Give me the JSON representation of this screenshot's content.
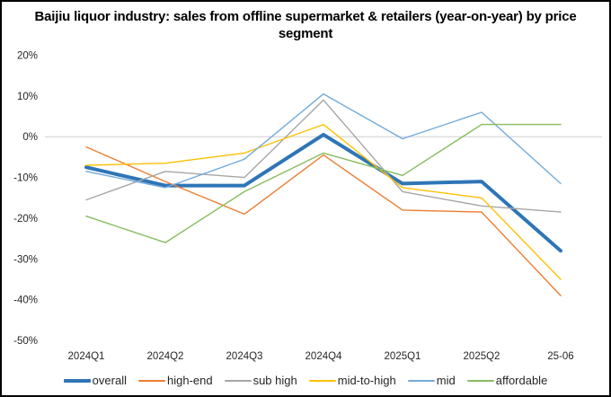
{
  "title": "Baijiu liquor industry: sales from offline supermarket & retailers (year-on-year) by price segment",
  "chart_data": {
    "type": "line",
    "categories": [
      "2024Q1",
      "2024Q2",
      "2024Q3",
      "2024Q4",
      "2025Q1",
      "2025Q2",
      "25-06"
    ],
    "series": [
      {
        "name": "overall",
        "color": "#2E75B6",
        "thick": true,
        "values": [
          -7.5,
          -12,
          -12,
          0.5,
          -11.5,
          -11,
          -28
        ]
      },
      {
        "name": "high-end",
        "color": "#ED7D31",
        "thick": false,
        "values": [
          -2.5,
          -11,
          -19,
          -4.5,
          -18,
          -18.5,
          -39
        ]
      },
      {
        "name": "sub high",
        "color": "#A6A6A6",
        "thick": false,
        "values": [
          -15.5,
          -8.5,
          -10,
          9,
          -13.5,
          -17,
          -18.5
        ]
      },
      {
        "name": "mid-to-high",
        "color": "#FFC000",
        "thick": false,
        "values": [
          -7,
          -6.5,
          -4,
          3,
          -12.5,
          -15,
          -35
        ]
      },
      {
        "name": "mid",
        "color": "#74AADB",
        "thick": false,
        "values": [
          -8.5,
          -12.5,
          -5.5,
          10.5,
          -0.5,
          6,
          -11.5
        ]
      },
      {
        "name": "affordable",
        "color": "#87BD61",
        "thick": false,
        "values": [
          -19.5,
          -26,
          -13.5,
          -4,
          -9.5,
          3,
          3
        ]
      }
    ],
    "y_tick_labels": [
      "20%",
      "10%",
      "0%",
      "-10%",
      "-20%",
      "-30%",
      "-40%",
      "-50%"
    ],
    "ylim": [
      -50,
      20
    ],
    "gridline_at": 0,
    "grid": "only zero line",
    "legend_position": "bottom",
    "xlabel": "",
    "ylabel": ""
  },
  "colors": {
    "gridline": "#D9D9D9",
    "axis_text": "#262626",
    "title_text": "#000000",
    "frame_border": "#000000",
    "background": "#FFFFFF"
  }
}
